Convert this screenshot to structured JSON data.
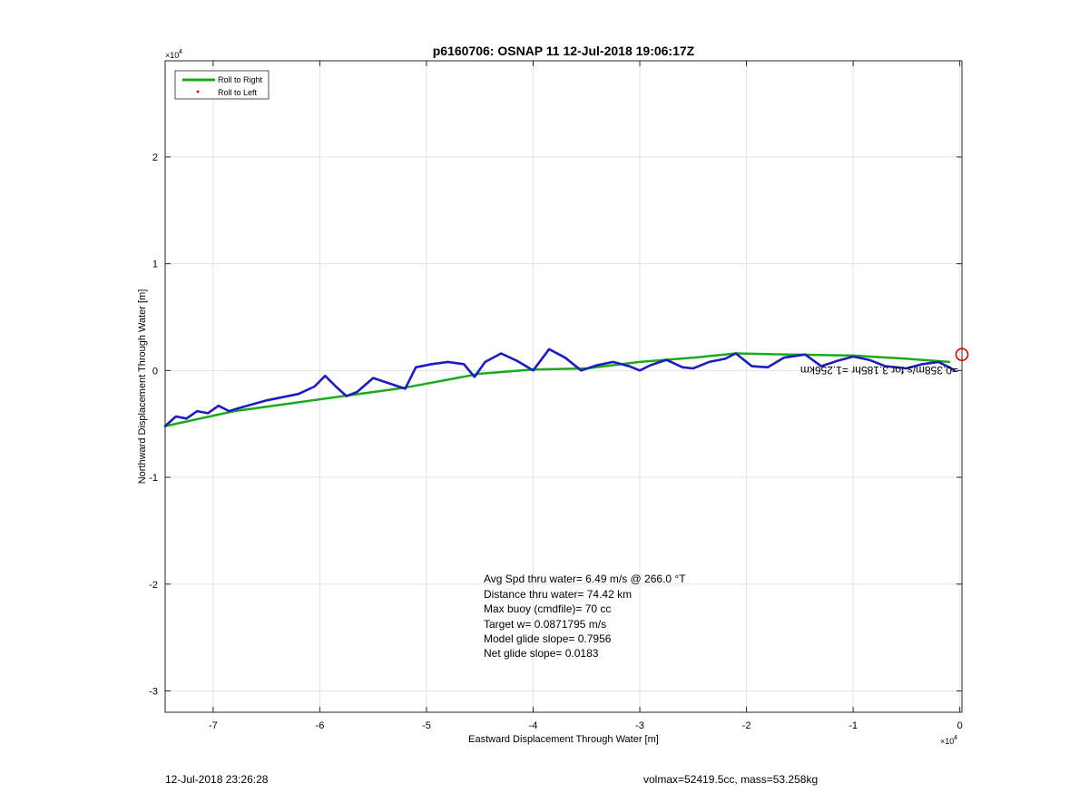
{
  "chart_data": {
    "type": "line",
    "title": "p6160706: OSNAP 11 12-Jul-2018 19:06:17Z",
    "xlabel": "Eastward Displacement Through Water [m]",
    "ylabel": "Northward Displacement Through Water [m]",
    "x_exponent_label": "×10",
    "x_exponent_power": "4",
    "y_exponent_label": "×10",
    "y_exponent_power": "4",
    "xlim": [
      -7.45,
      0.02
    ],
    "ylim": [
      -3.2,
      2.9
    ],
    "xticks": [
      -7,
      -6,
      -5,
      -4,
      -3,
      -2,
      -1,
      0
    ],
    "xtick_labels": [
      "-7",
      "-6",
      "-5",
      "-4",
      "-3",
      "-2",
      "-1",
      "0"
    ],
    "yticks": [
      -3,
      -2,
      -1,
      0,
      1,
      2
    ],
    "ytick_labels": [
      "-3",
      "-2",
      "-1",
      "0",
      "1",
      "2"
    ],
    "grid": true,
    "legend_position": "top-left",
    "legend": [
      {
        "label": "Roll to Right",
        "color": "#1aaa1a",
        "style": "line"
      },
      {
        "label": "Roll to Left",
        "color": "#ee0000",
        "style": "dot"
      }
    ],
    "series": [
      {
        "name": "Roll to Right",
        "color": "#1aaa1a",
        "x": [
          -7.45,
          -6.8,
          -6.0,
          -5.2,
          -4.5,
          -4.0,
          -3.5,
          -3.0,
          -2.5,
          -2.1,
          -1.6,
          -1.0,
          -0.5,
          -0.1
        ],
        "y": [
          -0.52,
          -0.38,
          -0.27,
          -0.16,
          -0.03,
          0.01,
          0.02,
          0.08,
          0.12,
          0.16,
          0.15,
          0.14,
          0.11,
          0.08
        ]
      },
      {
        "color": "#1c1cc0",
        "x": [
          -7.45,
          -7.35,
          -7.25,
          -7.15,
          -7.05,
          -6.95,
          -6.85,
          -6.75,
          -6.5,
          -6.2,
          -6.05,
          -5.95,
          -5.85,
          -5.75,
          -5.65,
          -5.5,
          -5.35,
          -5.2,
          -5.1,
          -4.95,
          -4.8,
          -4.65,
          -4.55,
          -4.45,
          -4.3,
          -4.15,
          -4.0,
          -3.85,
          -3.7,
          -3.55,
          -3.4,
          -3.25,
          -3.1,
          -3.0,
          -2.9,
          -2.75,
          -2.6,
          -2.5,
          -2.35,
          -2.2,
          -2.1,
          -1.95,
          -1.8,
          -1.65,
          -1.45,
          -1.3,
          -1.15,
          -1.0,
          -0.85,
          -0.7,
          -0.5,
          -0.35,
          -0.2,
          -0.1,
          -0.05
        ],
        "y": [
          -0.52,
          -0.43,
          -0.45,
          -0.38,
          -0.4,
          -0.33,
          -0.38,
          -0.35,
          -0.28,
          -0.22,
          -0.15,
          -0.05,
          -0.15,
          -0.24,
          -0.2,
          -0.07,
          -0.12,
          -0.17,
          0.03,
          0.06,
          0.08,
          0.06,
          -0.06,
          0.08,
          0.16,
          0.09,
          0.0,
          0.2,
          0.12,
          0.0,
          0.05,
          0.08,
          0.04,
          0.0,
          0.05,
          0.1,
          0.03,
          0.02,
          0.08,
          0.11,
          0.16,
          0.04,
          0.03,
          0.12,
          0.15,
          0.04,
          0.09,
          0.13,
          0.1,
          0.04,
          0.02,
          0.06,
          0.08,
          0.03,
          0.0
        ]
      }
    ],
    "end_marker": {
      "x": 0.02,
      "y": 0.15,
      "color": "#e00000"
    },
    "mirrored_annotation": "=0.358m/s for 3.185hr =1.256km",
    "annotations": [
      "Avg Spd thru water=  6.49 m/s @ 266.0 °T",
      "Distance thru water= 74.42 km",
      "Max buoy (cmdfile)= 70 cc",
      "Target w= 0.0871795 m/s",
      "Model glide slope= 0.7956",
      "Net glide slope= 0.0183"
    ]
  },
  "footer": {
    "left": "12-Jul-2018 23:26:28",
    "right": "volmax=52419.5cc, mass=53.258kg"
  }
}
